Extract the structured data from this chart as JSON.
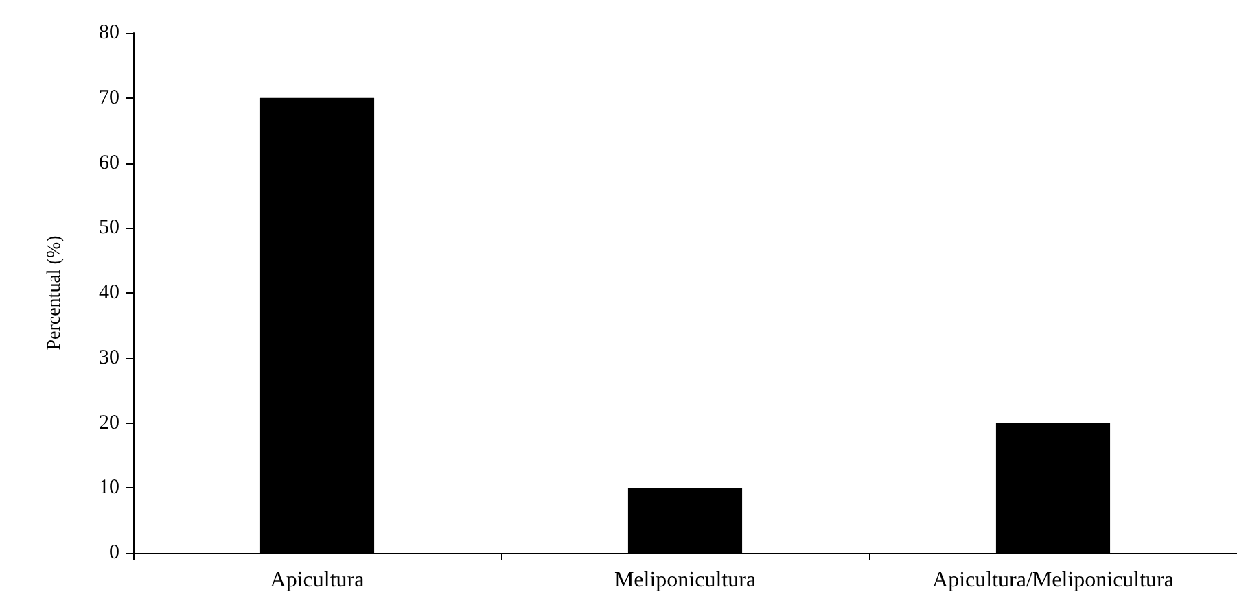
{
  "chart_data": {
    "type": "bar",
    "ylabel": "Percentual (%)",
    "categories": [
      "Apicultura",
      "Meliponicultura",
      "Apicultura/Meliponicultura"
    ],
    "values": [
      70,
      10,
      20
    ],
    "color": "#000000",
    "ylim": [
      0,
      80
    ],
    "yticks": [
      0,
      10,
      20,
      30,
      40,
      50,
      60,
      70,
      80
    ],
    "grid": false
  }
}
